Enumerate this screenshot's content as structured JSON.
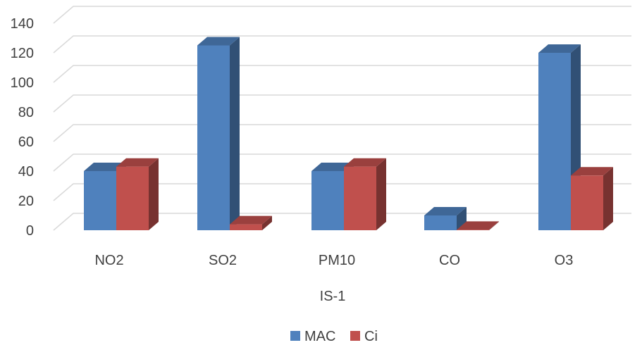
{
  "chart_data": {
    "type": "bar",
    "style": "3d-clustered-column",
    "categories": [
      "NO2",
      "SO2",
      "PM10",
      "CO",
      "O3"
    ],
    "series": [
      {
        "name": "MAC",
        "values": [
          40,
          125,
          40,
          10,
          120
        ],
        "color": "#4f81bd"
      },
      {
        "name": "Ci",
        "values": [
          43,
          4,
          43,
          0.3,
          37
        ],
        "color": "#c0504d"
      }
    ],
    "title": "",
    "xlabel": "IS-1",
    "ylabel": "",
    "ylim": [
      0,
      140
    ],
    "yticks": [
      0,
      20,
      40,
      60,
      80,
      100,
      120,
      140
    ],
    "grid": true,
    "legend_position": "bottom"
  }
}
